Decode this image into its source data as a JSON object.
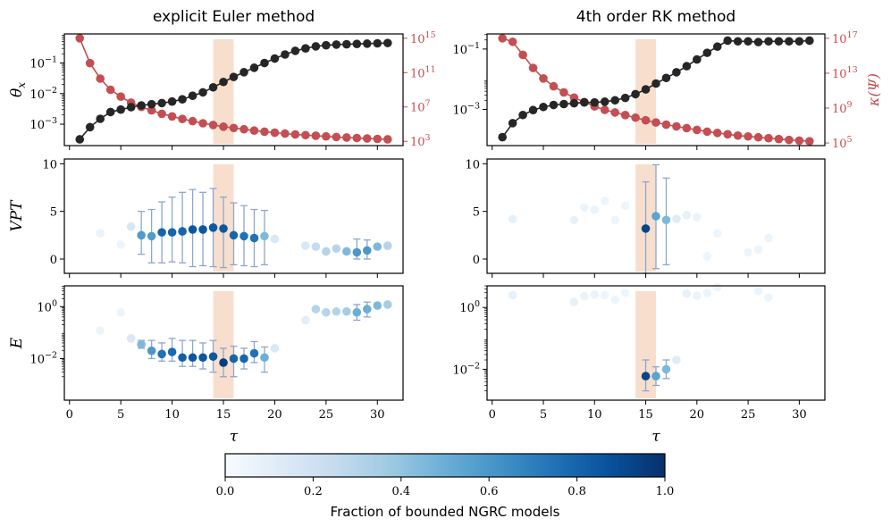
{
  "chart_data": {
    "type": "scatter",
    "x_label": "τ",
    "x_ticks": [
      0,
      5,
      10,
      15,
      20,
      25,
      30
    ],
    "highlight_band": [
      14,
      16
    ],
    "rows": [
      {
        "id": "theta",
        "label": "θx",
        "scale": "log"
      },
      {
        "id": "vpt",
        "label": "VPT",
        "scale": "linear",
        "ylim": [
          -1.5,
          10.5
        ],
        "ticks": [
          0,
          5,
          10
        ]
      },
      {
        "id": "energy",
        "label": "E",
        "scale": "log"
      }
    ],
    "colorbar": {
      "label": "Fraction of bounded NGRC models",
      "ticks": [
        "0.0",
        "0.2",
        "0.4",
        "0.6",
        "0.8",
        "1.0"
      ],
      "colors": [
        "#f7fbff",
        "#deebf7",
        "#c6dbef",
        "#9ecae1",
        "#6baed6",
        "#4292c6",
        "#2171b5",
        "#08519c",
        "#08306b"
      ]
    },
    "panels": [
      {
        "title": "explicit Euler method",
        "theta": {
          "ylim_log": [
            -3.7,
            -0.05
          ],
          "ticks": [
            {
              "v": -3,
              "t": "10",
              "e": "−3"
            },
            {
              "v": -2,
              "t": "10",
              "e": "−2"
            },
            {
              "v": -1,
              "t": "10",
              "e": "−1"
            }
          ],
          "x": [
            1,
            2,
            3,
            4,
            5,
            6,
            7,
            8,
            9,
            10,
            11,
            12,
            13,
            14,
            15,
            16,
            17,
            18,
            19,
            20,
            21,
            22,
            23,
            24,
            25,
            26,
            27,
            28,
            29,
            30,
            31
          ],
          "values": [
            0.00032,
            0.0008,
            0.0015,
            0.0025,
            0.003,
            0.0036,
            0.0041,
            0.0045,
            0.0049,
            0.0055,
            0.0065,
            0.0085,
            0.011,
            0.016,
            0.024,
            0.035,
            0.05,
            0.07,
            0.1,
            0.14,
            0.19,
            0.25,
            0.3,
            0.35,
            0.38,
            0.4,
            0.41,
            0.42,
            0.43,
            0.44,
            0.45
          ],
          "kappa": {
            "label": "κ(Ψ)",
            "ylim_log": [
              2.5,
              15.5
            ],
            "ticks": [
              {
                "v": 3,
                "t": "10",
                "e": "3"
              },
              {
                "v": 7,
                "t": "10",
                "e": "7"
              },
              {
                "v": 11,
                "t": "10",
                "e": "11"
              },
              {
                "v": 15,
                "t": "10",
                "e": "15"
              }
            ],
            "values_log10": [
              15,
              12.1,
              10.3,
              9.0,
              8.2,
              7.5,
              7.0,
              6.6,
              6.2,
              5.9,
              5.6,
              5.35,
              5.1,
              4.9,
              4.7,
              4.55,
              4.4,
              4.25,
              4.12,
              4.0,
              3.9,
              3.8,
              3.72,
              3.65,
              3.57,
              3.5,
              3.44,
              3.38,
              3.33,
              3.28,
              3.23
            ]
          }
        },
        "vpt": {
          "points": [
            {
              "x": 3,
              "y": 2.7,
              "f": 0.06
            },
            {
              "x": 5,
              "y": 1.5,
              "f": 0.05
            },
            {
              "x": 6,
              "y": 3.4,
              "f": 0.15
            },
            {
              "x": 7,
              "y": 2.5,
              "f": 0.58,
              "lo": 0.5,
              "hi": 5.0
            },
            {
              "x": 8,
              "y": 2.4,
              "f": 0.58,
              "lo": -0.4,
              "hi": 5.2
            },
            {
              "x": 9,
              "y": 2.8,
              "f": 0.8,
              "lo": -0.4,
              "hi": 6.0
            },
            {
              "x": 10,
              "y": 2.8,
              "f": 0.8,
              "lo": -0.3,
              "hi": 6.5
            },
            {
              "x": 11,
              "y": 2.9,
              "f": 0.8,
              "lo": -0.4,
              "hi": 7.0
            },
            {
              "x": 12,
              "y": 3.1,
              "f": 0.85,
              "lo": -0.8,
              "hi": 7.3
            },
            {
              "x": 13,
              "y": 3.1,
              "f": 0.85,
              "lo": -0.7,
              "hi": 7.0
            },
            {
              "x": 14,
              "y": 3.3,
              "f": 0.85,
              "lo": -0.8,
              "hi": 7.4
            },
            {
              "x": 15,
              "y": 3.2,
              "f": 0.85,
              "lo": -0.9,
              "hi": 6.5
            },
            {
              "x": 16,
              "y": 2.5,
              "f": 0.8,
              "lo": -0.6,
              "hi": 5.9
            },
            {
              "x": 17,
              "y": 2.4,
              "f": 0.75,
              "lo": -0.7,
              "hi": 5.6
            },
            {
              "x": 18,
              "y": 2.2,
              "f": 0.75,
              "lo": -0.8,
              "hi": 5.2
            },
            {
              "x": 19,
              "y": 2.4,
              "f": 0.45,
              "lo": -0.6,
              "hi": 5.1
            },
            {
              "x": 20,
              "y": 2.1,
              "f": 0.15
            },
            {
              "x": 23,
              "y": 1.4,
              "f": 0.15
            },
            {
              "x": 24,
              "y": 1.3,
              "f": 0.25
            },
            {
              "x": 25,
              "y": 0.8,
              "f": 0.3
            },
            {
              "x": 26,
              "y": 1.1,
              "f": 0.3
            },
            {
              "x": 27,
              "y": 0.8,
              "f": 0.45
            },
            {
              "x": 28,
              "y": 0.7,
              "f": 0.6,
              "lo": 0.0,
              "hi": 2.1
            },
            {
              "x": 29,
              "y": 0.9,
              "f": 0.6,
              "lo": 0.0,
              "hi": 2.0
            },
            {
              "x": 30,
              "y": 1.3,
              "f": 0.45
            },
            {
              "x": 31,
              "y": 1.4,
              "f": 0.3
            }
          ]
        },
        "energy": {
          "ylim_log": [
            -3.6,
            0.8
          ],
          "ticks": [
            {
              "v": -2,
              "t": "10",
              "e": "−2"
            },
            {
              "v": 0,
              "t": "10",
              "e": "0"
            }
          ],
          "points": [
            {
              "x": 3,
              "y": 0.12,
              "f": 0.05
            },
            {
              "x": 5,
              "y": 0.6,
              "f": 0.05
            },
            {
              "x": 6,
              "y": 0.06,
              "f": 0.15
            },
            {
              "x": 7,
              "y": 0.035,
              "f": 0.45,
              "lo": 0.025,
              "hi": 0.05
            },
            {
              "x": 8,
              "y": 0.02,
              "f": 0.6,
              "lo": 0.01,
              "hi": 0.05
            },
            {
              "x": 9,
              "y": 0.015,
              "f": 0.75,
              "lo": 0.008,
              "hi": 0.04
            },
            {
              "x": 10,
              "y": 0.018,
              "f": 0.78,
              "lo": 0.008,
              "hi": 0.06
            },
            {
              "x": 11,
              "y": 0.011,
              "f": 0.82,
              "lo": 0.005,
              "hi": 0.05
            },
            {
              "x": 12,
              "y": 0.011,
              "f": 0.85,
              "lo": 0.005,
              "hi": 0.05
            },
            {
              "x": 13,
              "y": 0.011,
              "f": 0.85,
              "lo": 0.004,
              "hi": 0.04
            },
            {
              "x": 14,
              "y": 0.012,
              "f": 0.85,
              "lo": 0.003,
              "hi": 0.05
            },
            {
              "x": 15,
              "y": 0.007,
              "f": 0.95,
              "lo": 0.002,
              "hi": 0.025
            },
            {
              "x": 16,
              "y": 0.01,
              "f": 0.8,
              "lo": 0.002,
              "hi": 0.03
            },
            {
              "x": 17,
              "y": 0.01,
              "f": 0.8,
              "lo": 0.004,
              "hi": 0.025
            },
            {
              "x": 18,
              "y": 0.016,
              "f": 0.75,
              "lo": 0.007,
              "hi": 0.045
            },
            {
              "x": 19,
              "y": 0.011,
              "f": 0.5,
              "lo": 0.003,
              "hi": 0.028
            },
            {
              "x": 20,
              "y": 0.025,
              "f": 0.15
            },
            {
              "x": 23,
              "y": 0.3,
              "f": 0.1
            },
            {
              "x": 24,
              "y": 0.8,
              "f": 0.3
            },
            {
              "x": 25,
              "y": 0.6,
              "f": 0.3
            },
            {
              "x": 26,
              "y": 0.65,
              "f": 0.3
            },
            {
              "x": 27,
              "y": 0.65,
              "f": 0.35
            },
            {
              "x": 28,
              "y": 0.6,
              "f": 0.5,
              "lo": 0.3,
              "hi": 1.2
            },
            {
              "x": 29,
              "y": 0.8,
              "f": 0.5,
              "lo": 0.4,
              "hi": 1.5
            },
            {
              "x": 30,
              "y": 1.1,
              "f": 0.45
            },
            {
              "x": 31,
              "y": 1.2,
              "f": 0.35
            }
          ]
        }
      },
      {
        "title": "4th order RK method",
        "theta": {
          "ylim_log": [
            -4.2,
            -0.5
          ],
          "ticks": [
            {
              "v": -3,
              "t": "10",
              "e": "−3"
            },
            {
              "v": -1,
              "t": "10",
              "e": "−1"
            }
          ],
          "x": [
            1,
            2,
            3,
            4,
            5,
            6,
            7,
            8,
            9,
            10,
            11,
            12,
            13,
            14,
            15,
            16,
            17,
            18,
            19,
            20,
            21,
            22,
            23,
            24,
            25,
            26,
            27,
            28,
            29,
            30,
            31
          ],
          "values": [
            0.00012,
            0.00035,
            0.00065,
            0.00095,
            0.0012,
            0.0014,
            0.0015,
            0.0016,
            0.0017,
            0.0017,
            0.0018,
            0.002,
            0.0024,
            0.0032,
            0.0046,
            0.0072,
            0.011,
            0.017,
            0.027,
            0.045,
            0.075,
            0.12,
            0.19,
            0.18,
            0.18,
            0.17,
            0.18,
            0.18,
            0.18,
            0.18,
            0.19
          ],
          "kappa": {
            "label": "κ(Ψ)",
            "ylim_log": [
              4.7,
              17.5
            ],
            "ticks": [
              {
                "v": 5,
                "t": "10",
                "e": "5"
              },
              {
                "v": 9,
                "t": "10",
                "e": "9"
              },
              {
                "v": 13,
                "t": "10",
                "e": "13"
              },
              {
                "v": 17,
                "t": "10",
                "e": "17"
              }
            ],
            "values_log10": [
              17,
              16.6,
              15.1,
              13.6,
              12.4,
              11.5,
              10.8,
              10.2,
              9.7,
              9.2,
              8.8,
              8.5,
              8.2,
              7.9,
              7.6,
              7.35,
              7.1,
              6.9,
              6.7,
              6.5,
              6.3,
              6.15,
              6.0,
              5.85,
              5.75,
              5.65,
              5.55,
              5.45,
              5.35,
              5.27,
              5.2
            ]
          }
        },
        "vpt": {
          "points": [
            {
              "x": 2,
              "y": 4.2,
              "f": 0.08
            },
            {
              "x": 8,
              "y": 4.1,
              "f": 0.08
            },
            {
              "x": 9,
              "y": 5.4,
              "f": 0.06
            },
            {
              "x": 10,
              "y": 5.2,
              "f": 0.06
            },
            {
              "x": 11,
              "y": 6.1,
              "f": 0.05
            },
            {
              "x": 12,
              "y": 4.1,
              "f": 0.05
            },
            {
              "x": 13,
              "y": 5.6,
              "f": 0.05
            },
            {
              "x": 15,
              "y": 3.2,
              "f": 0.92,
              "lo": -1.5,
              "hi": 8.1
            },
            {
              "x": 16,
              "y": 4.5,
              "f": 0.55,
              "lo": -1.0,
              "hi": 9.9
            },
            {
              "x": 17,
              "y": 4.1,
              "f": 0.45,
              "lo": -0.6,
              "hi": 8.5
            },
            {
              "x": 18,
              "y": 4.2,
              "f": 0.12
            },
            {
              "x": 19,
              "y": 4.6,
              "f": 0.08
            },
            {
              "x": 20,
              "y": 4.4,
              "f": 0.06
            },
            {
              "x": 21,
              "y": 0.3,
              "f": 0.05
            },
            {
              "x": 22,
              "y": 2.7,
              "f": 0.05
            },
            {
              "x": 25,
              "y": 0.7,
              "f": 0.05
            },
            {
              "x": 26,
              "y": 1.0,
              "f": 0.05
            },
            {
              "x": 27,
              "y": 2.2,
              "f": 0.05
            }
          ]
        },
        "energy": {
          "ylim_log": [
            -3.0,
            0.7
          ],
          "ticks": [
            {
              "v": -2,
              "t": "10",
              "e": "−2"
            },
            {
              "v": 0,
              "t": "10",
              "e": "0"
            }
          ],
          "points": [
            {
              "x": 2,
              "y": 2.5,
              "f": 0.08
            },
            {
              "x": 8,
              "y": 1.5,
              "f": 0.08
            },
            {
              "x": 9,
              "y": 2.3,
              "f": 0.06
            },
            {
              "x": 10,
              "y": 2.6,
              "f": 0.06
            },
            {
              "x": 11,
              "y": 2.5,
              "f": 0.05
            },
            {
              "x": 12,
              "y": 1.8,
              "f": 0.05
            },
            {
              "x": 13,
              "y": 3.0,
              "f": 0.05
            },
            {
              "x": 15,
              "y": 0.006,
              "f": 0.92,
              "lo": 0.002,
              "hi": 0.02
            },
            {
              "x": 16,
              "y": 0.006,
              "f": 0.55,
              "lo": 0.003,
              "hi": 0.012
            },
            {
              "x": 17,
              "y": 0.01,
              "f": 0.45,
              "lo": 0.005,
              "hi": 0.02
            },
            {
              "x": 18,
              "y": 0.02,
              "f": 0.12
            },
            {
              "x": 19,
              "y": 2.8,
              "f": 0.08
            },
            {
              "x": 20,
              "y": 2.4,
              "f": 0.06
            },
            {
              "x": 21,
              "y": 3.0,
              "f": 0.05
            },
            {
              "x": 22,
              "y": 4.5,
              "f": 0.05
            },
            {
              "x": 26,
              "y": 3.4,
              "f": 0.05
            },
            {
              "x": 27,
              "y": 2.1,
              "f": 0.05
            }
          ]
        }
      }
    ]
  }
}
